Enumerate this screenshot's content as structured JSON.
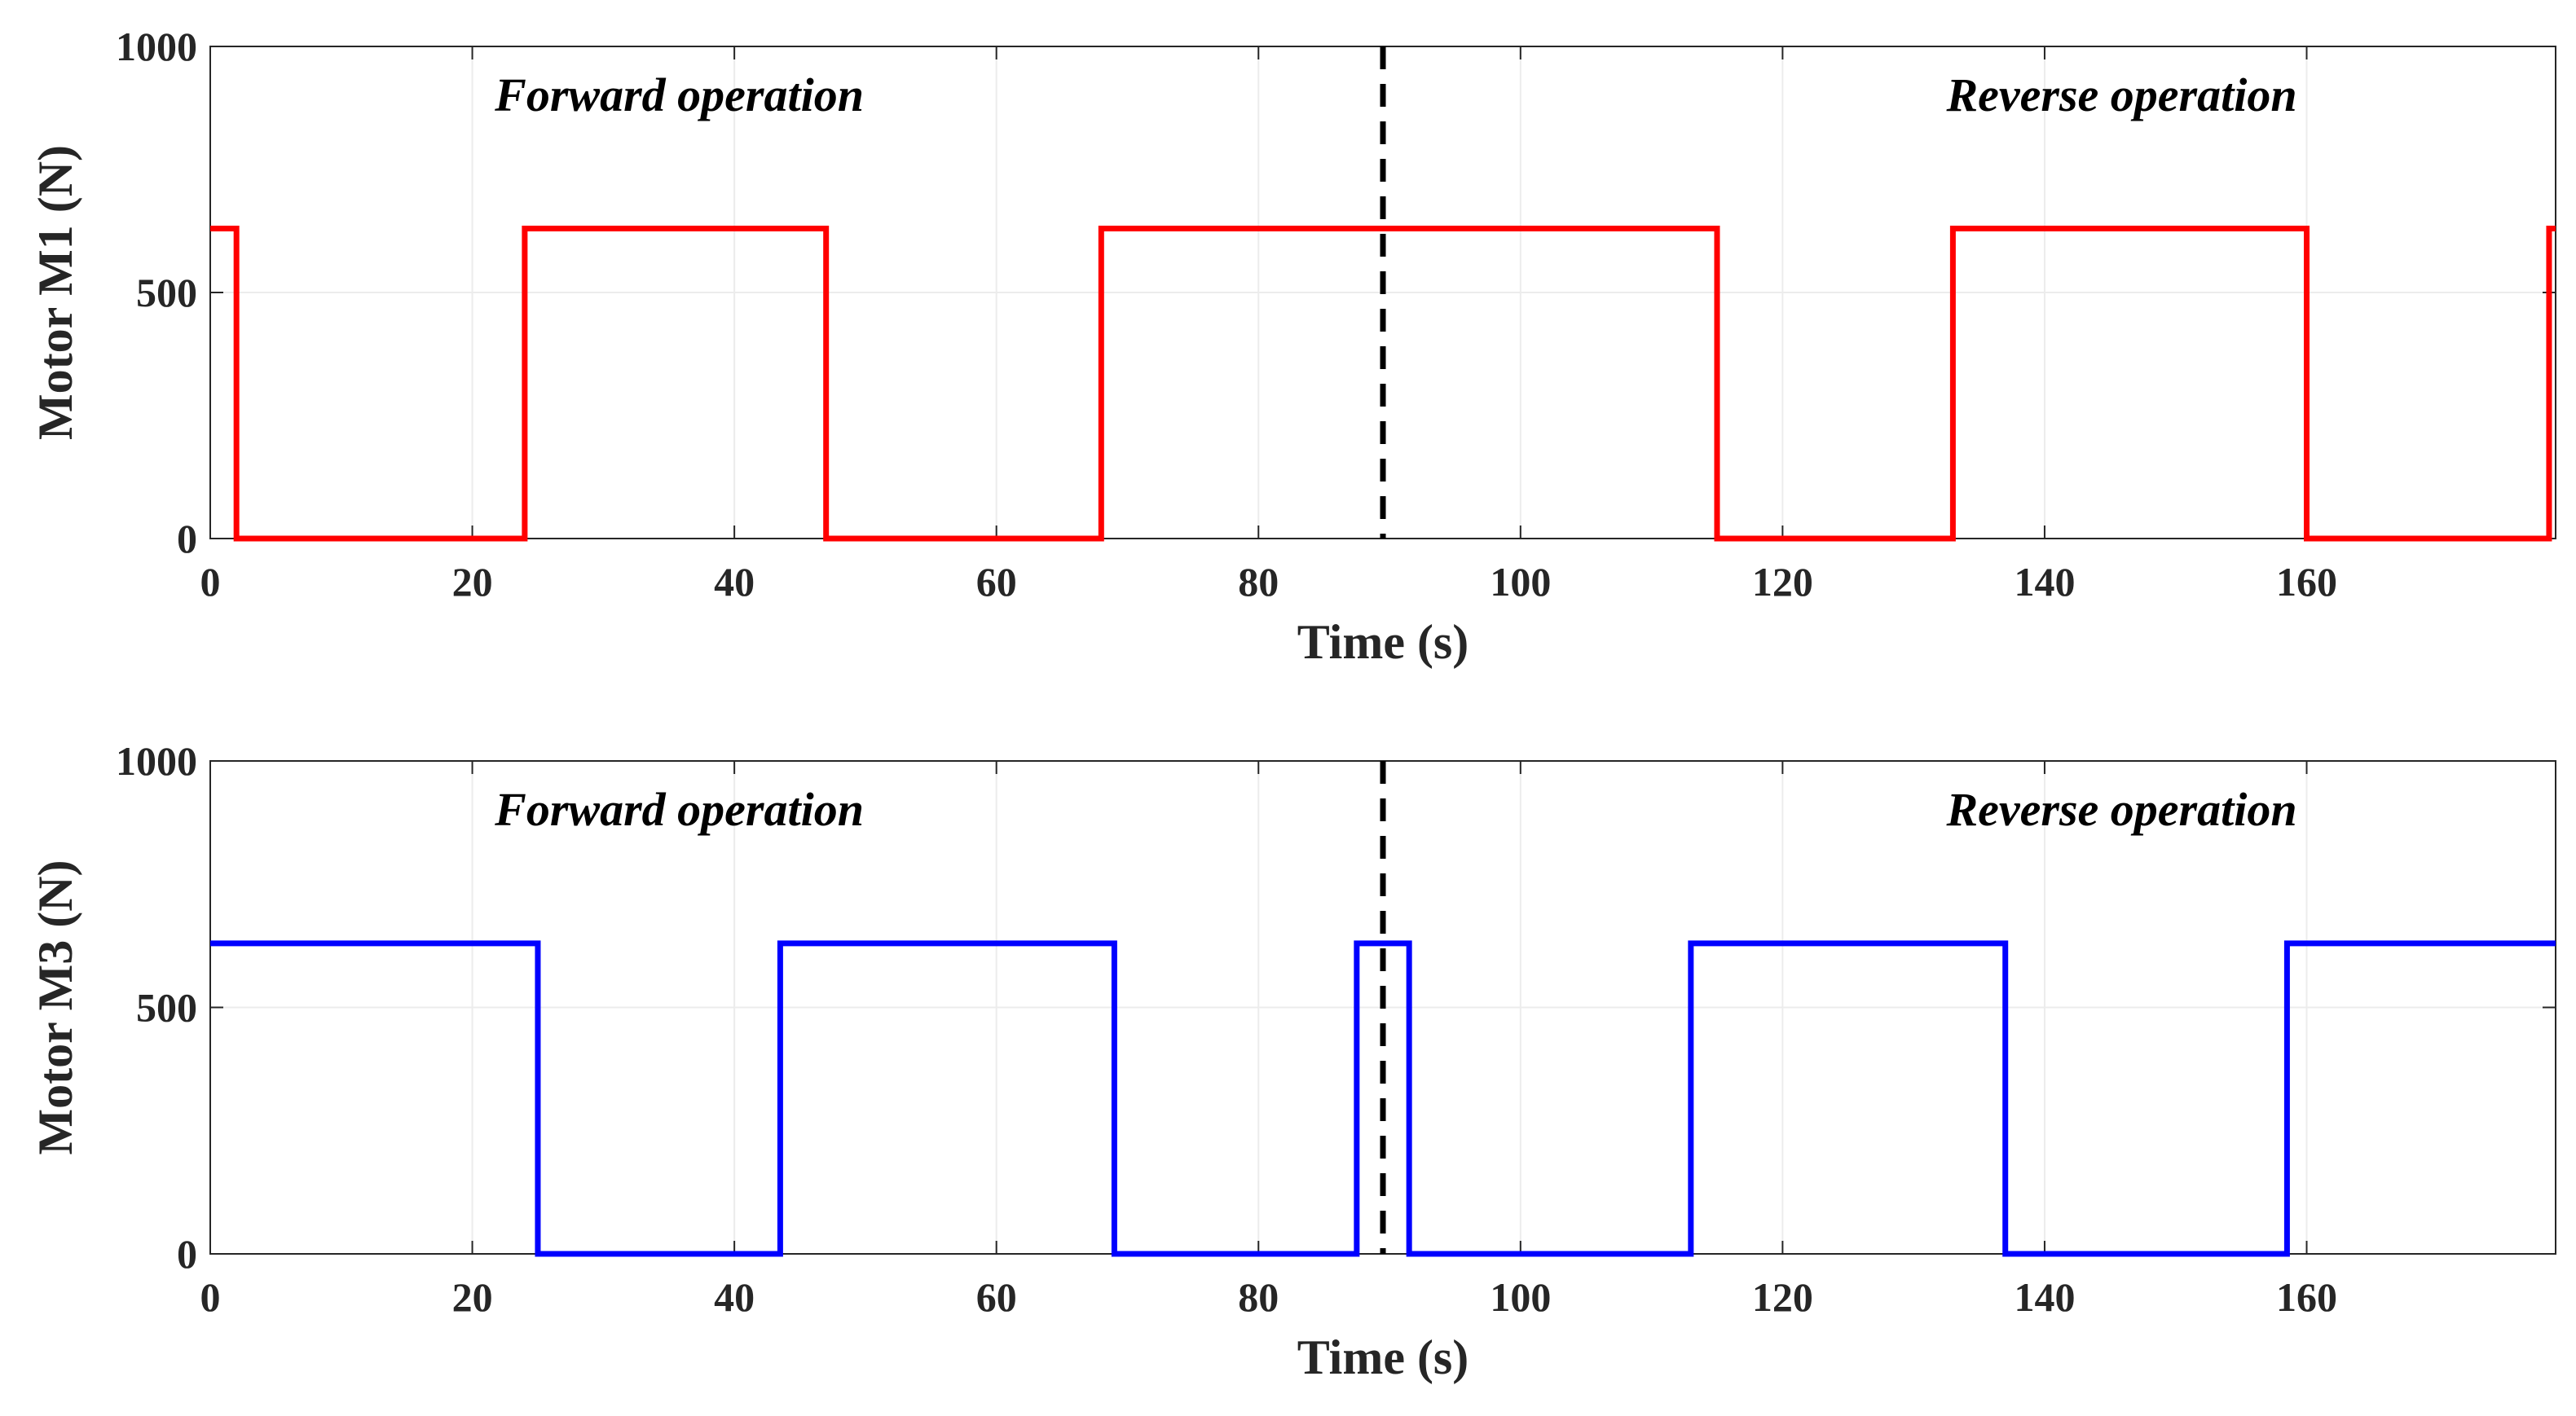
{
  "chart_data": [
    {
      "type": "line",
      "title": "",
      "xlabel": "Time (s)",
      "ylabel": "Motor M1 (N)",
      "xlim": [
        0,
        179
      ],
      "ylim": [
        0,
        1000
      ],
      "xticks": [
        0,
        20,
        40,
        60,
        80,
        100,
        120,
        140,
        160
      ],
      "yticks": [
        0,
        500,
        1000
      ],
      "grid": true,
      "divider_x": 89.5,
      "annotations": [
        "Forward operation",
        "Reverse operation"
      ],
      "series": [
        {
          "name": "Motor M1",
          "color": "#ff0000",
          "x": [
            0,
            2,
            2,
            24,
            24,
            47,
            47,
            68,
            68,
            115,
            115,
            133,
            133,
            160,
            160,
            178.5,
            178.5,
            179
          ],
          "y": [
            630,
            630,
            0,
            0,
            630,
            630,
            0,
            0,
            630,
            630,
            0,
            0,
            630,
            630,
            0,
            0,
            630,
            630
          ]
        }
      ]
    },
    {
      "type": "line",
      "title": "",
      "xlabel": "Time (s)",
      "ylabel": "Motor M3 (N)",
      "xlim": [
        0,
        179
      ],
      "ylim": [
        0,
        1000
      ],
      "xticks": [
        0,
        20,
        40,
        60,
        80,
        100,
        120,
        140,
        160
      ],
      "yticks": [
        0,
        500,
        1000
      ],
      "grid": true,
      "divider_x": 89.5,
      "annotations": [
        "Forward operation",
        "Reverse operation"
      ],
      "series": [
        {
          "name": "Motor M3",
          "color": "#0000ff",
          "x": [
            0,
            25,
            25,
            43.5,
            43.5,
            69,
            69,
            87.5,
            87.5,
            91.5,
            91.5,
            113,
            113,
            137,
            137,
            158.5,
            158.5,
            179
          ],
          "y": [
            630,
            630,
            0,
            0,
            630,
            630,
            0,
            0,
            630,
            630,
            0,
            0,
            630,
            630,
            0,
            0,
            630,
            630
          ]
        }
      ]
    }
  ]
}
